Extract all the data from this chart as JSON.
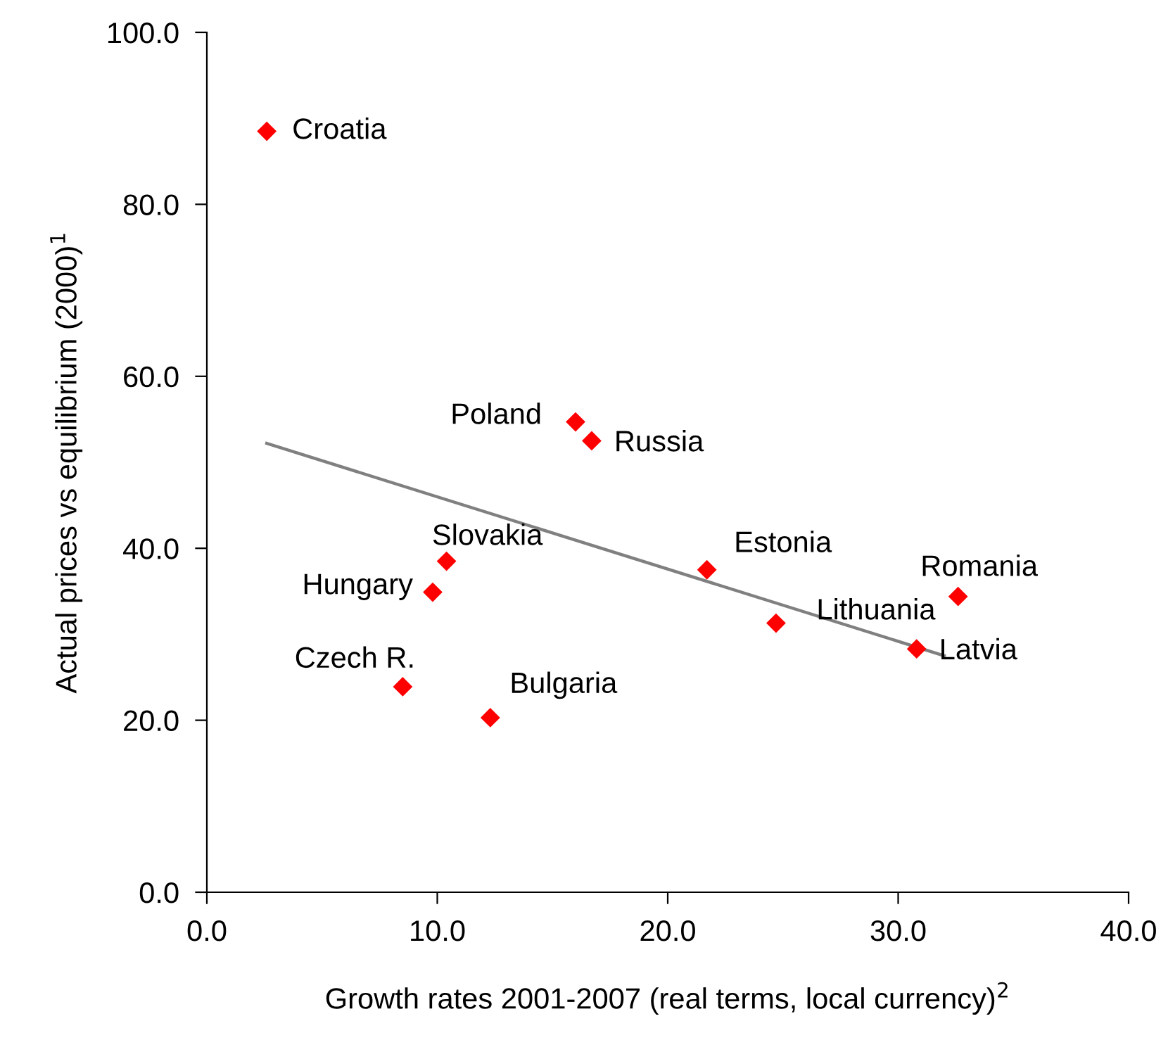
{
  "chart_data": {
    "type": "scatter",
    "xlabel": "Growth rates 2001-2007 (real terms, local currency)$^{2}$",
    "ylabel": "Actual prices vs equilibrium (2000)$^{1}$",
    "series": [
      {
        "color": "#ff0000",
        "marker": "diamond",
        "x": [
          2.6,
          16.0,
          16.7,
          10.4,
          9.8,
          21.7,
          32.6,
          24.7,
          30.8,
          8.5,
          12.3
        ],
        "values": [
          88.5,
          54.7,
          52.5,
          38.5,
          34.9,
          37.5,
          34.4,
          31.3,
          28.3,
          23.9,
          20.3
        ]
      },
      {
        "type": "line",
        "color": "#808080",
        "marker": "none",
        "x": [
          2.6,
          32.0
        ],
        "values": [
          52.2,
          27.5
        ]
      }
    ],
    "annotations": [
      {
        "text": "Croatia",
        "x": 2.6,
        "y": 88.5
      },
      {
        "text": "Poland",
        "x": 16.0,
        "y": 54.7
      },
      {
        "text": "Russia",
        "x": 16.7,
        "y": 52.5
      },
      {
        "text": "Slovakia",
        "x": 10.4,
        "y": 38.5
      },
      {
        "text": "Hungary",
        "x": 9.8,
        "y": 34.9
      },
      {
        "text": "Estonia",
        "x": 21.7,
        "y": 37.5
      },
      {
        "text": "Romania",
        "x": 32.6,
        "y": 34.4
      },
      {
        "text": "Lithuania",
        "x": 24.7,
        "y": 31.3
      },
      {
        "text": "Latvia",
        "x": 30.8,
        "y": 28.3
      },
      {
        "text": "Czech R.",
        "x": 8.5,
        "y": 23.9
      },
      {
        "text": "Bulgaria",
        "x": 12.3,
        "y": 20.3
      }
    ],
    "xlim": [
      0,
      40
    ],
    "xticks": [
      {
        "value": 0,
        "label": "0.0"
      },
      {
        "value": 10,
        "label": "10.0"
      },
      {
        "value": 20,
        "label": "20.0"
      },
      {
        "value": 30,
        "label": "30.0"
      },
      {
        "value": 40,
        "label": "40.0"
      }
    ],
    "ylim": [
      0,
      100
    ],
    "yticks": [
      {
        "value": 0,
        "label": "0.0"
      },
      {
        "value": 20,
        "label": "20.0"
      },
      {
        "value": 40,
        "label": "40.0"
      },
      {
        "value": 60,
        "label": "60.0"
      },
      {
        "value": 80,
        "label": "80.0"
      },
      {
        "value": 100,
        "label": "100.0"
      }
    ],
    "grid": false
  }
}
